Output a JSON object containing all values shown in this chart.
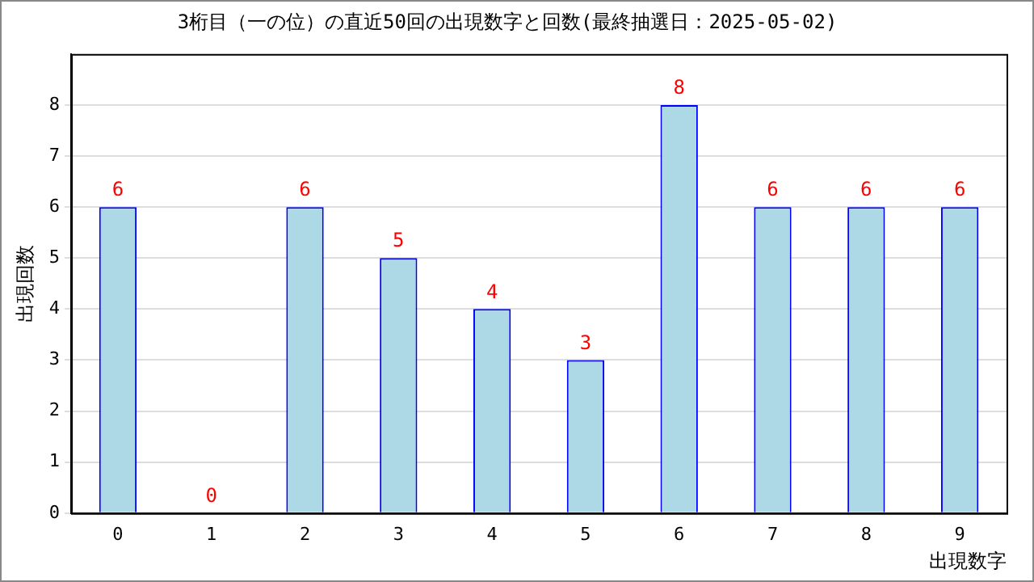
{
  "chart_data": {
    "type": "bar",
    "title": "3桁目（一の位）の直近50回の出現数字と回数(最終抽選日：2025-05-02)",
    "xlabel": "出現数字",
    "ylabel": "出現回数",
    "categories": [
      "0",
      "1",
      "2",
      "3",
      "4",
      "5",
      "6",
      "7",
      "8",
      "9"
    ],
    "values": [
      6,
      0,
      6,
      5,
      4,
      3,
      8,
      6,
      6,
      6
    ],
    "color": "#add8e6",
    "ylim": [
      0,
      9
    ],
    "yticks": [
      0,
      1,
      2,
      3,
      4,
      5,
      6,
      7,
      8
    ],
    "grid": "y",
    "data_labels": true,
    "legend": false
  }
}
